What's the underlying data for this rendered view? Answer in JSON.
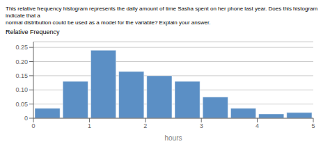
{
  "chart_data": {
    "type": "histogram",
    "title": "This relative frequency histogram represents the daily amount of time Sasha spent on her phone last year. Does this histogram indicate that a",
    "subtitle": "normal distribution could be used as a model for the variable? Explain your answer.",
    "ylabel": "Relative Frequency",
    "xlabel": "hours",
    "bins": [
      0,
      0.5,
      1.0,
      1.5,
      2.0,
      2.5,
      3.0,
      3.5,
      4.0,
      4.5,
      5.0
    ],
    "values": [
      0.035,
      0.13,
      0.24,
      0.165,
      0.15,
      0.13,
      0.075,
      0.035,
      0.015,
      0.02
    ],
    "color": "#5b8fc5",
    "xlim": [
      0,
      5
    ],
    "ylim": [
      0,
      0.27
    ],
    "xticks": [
      0,
      1,
      2,
      3,
      4,
      5
    ],
    "yticks": [
      0,
      0.05,
      {
        "value": 0.1,
        "label": "0.10"
      },
      0.15,
      {
        "value": 0.2,
        "label": "0.20"
      },
      0.25
    ],
    "grid": true
  }
}
